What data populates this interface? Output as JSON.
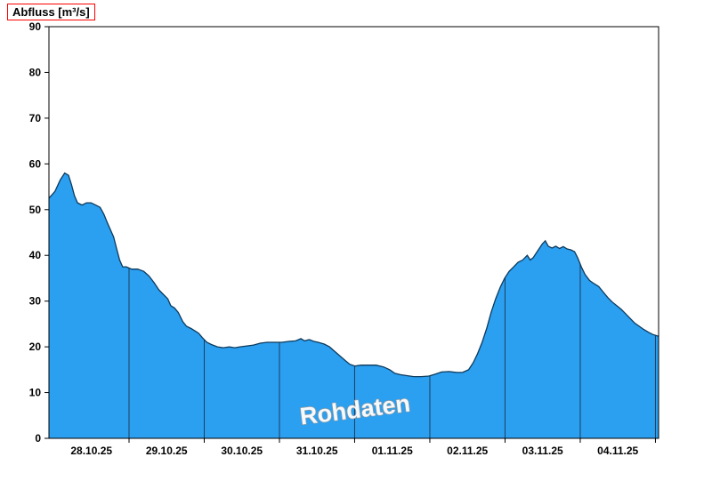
{
  "chart_data": {
    "type": "area",
    "title": "Abfluss [m³/s]",
    "ylabel": "Abfluss [m³/s]",
    "xlabel": "",
    "ylim": [
      0,
      90
    ],
    "yticks": [
      0,
      10,
      20,
      30,
      40,
      50,
      60,
      70,
      80,
      90
    ],
    "x_max_days": 8.107,
    "day_boundaries_days": [
      1.065,
      2.065,
      3.065,
      4.065,
      5.065,
      6.065,
      7.065,
      8.065
    ],
    "x_tick_labels": [
      "28.10.25",
      "29.10.25",
      "30.10.25",
      "31.10.25",
      "01.11.25",
      "02.11.25",
      "03.11.25",
      "04.11.25"
    ],
    "watermark": "Rohdaten",
    "legend": [],
    "grid": "day-separators-inside-area",
    "colors": {
      "fill": "#2b9ff0",
      "line": "#0d3a5c",
      "frame": "#000000",
      "day_grid": "#1c3f5e",
      "watermark_fill": "#ffffff",
      "watermark_stroke": "#999999",
      "title_box": "#ff0000",
      "tick_text": "#000000"
    },
    "series": [
      {
        "name": "Abfluss Rohdaten",
        "unit": "m³/s",
        "points": [
          [
            0.0,
            52.5
          ],
          [
            0.08,
            54
          ],
          [
            0.15,
            56.5
          ],
          [
            0.21,
            58
          ],
          [
            0.26,
            57.5
          ],
          [
            0.3,
            55.5
          ],
          [
            0.34,
            53
          ],
          [
            0.38,
            51.5
          ],
          [
            0.44,
            51
          ],
          [
            0.5,
            51.5
          ],
          [
            0.56,
            51.5
          ],
          [
            0.62,
            51
          ],
          [
            0.68,
            50.5
          ],
          [
            0.73,
            49
          ],
          [
            0.78,
            47
          ],
          [
            0.82,
            45.5
          ],
          [
            0.86,
            44
          ],
          [
            0.9,
            41.5
          ],
          [
            0.94,
            39
          ],
          [
            0.98,
            37.5
          ],
          [
            1.03,
            37.5
          ],
          [
            1.1,
            37
          ],
          [
            1.18,
            37
          ],
          [
            1.26,
            36.5
          ],
          [
            1.33,
            35.5
          ],
          [
            1.4,
            34
          ],
          [
            1.46,
            32.5
          ],
          [
            1.52,
            31.5
          ],
          [
            1.58,
            30.5
          ],
          [
            1.62,
            29
          ],
          [
            1.67,
            28.5
          ],
          [
            1.72,
            27.5
          ],
          [
            1.78,
            25.5
          ],
          [
            1.83,
            24.5
          ],
          [
            1.89,
            24
          ],
          [
            1.94,
            23.5
          ],
          [
            1.99,
            23
          ],
          [
            2.04,
            22
          ],
          [
            2.1,
            21
          ],
          [
            2.16,
            20.5
          ],
          [
            2.24,
            20
          ],
          [
            2.32,
            19.8
          ],
          [
            2.4,
            20
          ],
          [
            2.47,
            19.8
          ],
          [
            2.54,
            20
          ],
          [
            2.63,
            20.2
          ],
          [
            2.72,
            20.4
          ],
          [
            2.81,
            20.8
          ],
          [
            2.9,
            21
          ],
          [
            3.0,
            21
          ],
          [
            3.1,
            21
          ],
          [
            3.2,
            21.2
          ],
          [
            3.28,
            21.3
          ],
          [
            3.35,
            21.8
          ],
          [
            3.4,
            21.3
          ],
          [
            3.46,
            21.6
          ],
          [
            3.52,
            21.2
          ],
          [
            3.58,
            21
          ],
          [
            3.66,
            20.6
          ],
          [
            3.73,
            20
          ],
          [
            3.8,
            19
          ],
          [
            3.87,
            18
          ],
          [
            3.94,
            17
          ],
          [
            4.0,
            16.2
          ],
          [
            4.07,
            15.8
          ],
          [
            4.15,
            16
          ],
          [
            4.25,
            16
          ],
          [
            4.35,
            16
          ],
          [
            4.45,
            15.6
          ],
          [
            4.53,
            15
          ],
          [
            4.6,
            14.2
          ],
          [
            4.68,
            13.9
          ],
          [
            4.76,
            13.7
          ],
          [
            4.85,
            13.5
          ],
          [
            4.95,
            13.5
          ],
          [
            5.05,
            13.6
          ],
          [
            5.13,
            14
          ],
          [
            5.22,
            14.5
          ],
          [
            5.32,
            14.6
          ],
          [
            5.42,
            14.4
          ],
          [
            5.5,
            14.4
          ],
          [
            5.58,
            15
          ],
          [
            5.64,
            16.5
          ],
          [
            5.7,
            18.5
          ],
          [
            5.76,
            21
          ],
          [
            5.82,
            24
          ],
          [
            5.88,
            27.5
          ],
          [
            5.94,
            30.5
          ],
          [
            6.0,
            33
          ],
          [
            6.06,
            35
          ],
          [
            6.12,
            36.5
          ],
          [
            6.18,
            37.5
          ],
          [
            6.24,
            38.5
          ],
          [
            6.3,
            39
          ],
          [
            6.36,
            40
          ],
          [
            6.4,
            39
          ],
          [
            6.44,
            39.5
          ],
          [
            6.48,
            40.5
          ],
          [
            6.52,
            41.5
          ],
          [
            6.56,
            42.5
          ],
          [
            6.6,
            43.2
          ],
          [
            6.64,
            42
          ],
          [
            6.69,
            41.6
          ],
          [
            6.74,
            42
          ],
          [
            6.79,
            41.5
          ],
          [
            6.84,
            41.9
          ],
          [
            6.89,
            41.4
          ],
          [
            6.94,
            41.2
          ],
          [
            6.99,
            40.8
          ],
          [
            7.03,
            39.5
          ],
          [
            7.08,
            37.5
          ],
          [
            7.13,
            35.8
          ],
          [
            7.19,
            34.5
          ],
          [
            7.25,
            33.8
          ],
          [
            7.31,
            33.2
          ],
          [
            7.37,
            32
          ],
          [
            7.43,
            30.8
          ],
          [
            7.49,
            29.8
          ],
          [
            7.55,
            29
          ],
          [
            7.61,
            28.2
          ],
          [
            7.67,
            27.2
          ],
          [
            7.73,
            26.2
          ],
          [
            7.79,
            25.2
          ],
          [
            7.85,
            24.5
          ],
          [
            7.91,
            23.8
          ],
          [
            7.97,
            23.2
          ],
          [
            8.03,
            22.7
          ],
          [
            8.107,
            22.3
          ]
        ]
      }
    ]
  }
}
